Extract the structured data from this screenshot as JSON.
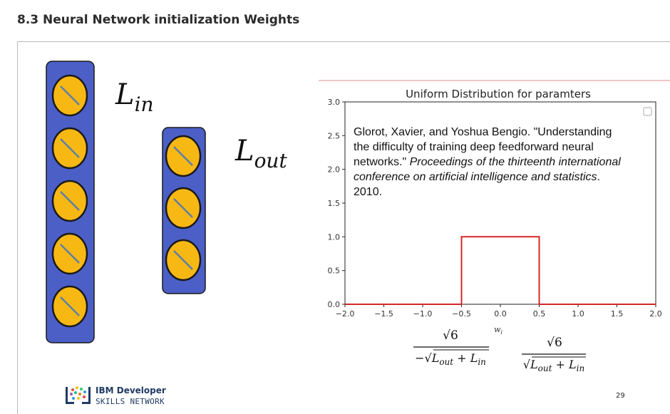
{
  "page": {
    "title": "8.3 Neural Network initialization Weights"
  },
  "slide": {
    "layer_in_label": {
      "base": "L",
      "sub": "in"
    },
    "layer_out_label": {
      "base": "L",
      "sub": "out"
    },
    "layer_in_neurons": 5,
    "layer_out_neurons": 3,
    "colors": {
      "layer_fill": "#4b5fc7",
      "neuron_fill": "#f8b814",
      "neuron_stroke": "#1a1a1a",
      "neuron_slash": "#5b7fa8",
      "line": "#d62728"
    }
  },
  "chart_data": {
    "type": "line",
    "title": "Uniform Distribution for paramters",
    "xlabel": "w",
    "xlabel_sub": "i",
    "ylabel": "",
    "xlim": [
      -2.0,
      2.0
    ],
    "ylim": [
      0.0,
      3.0
    ],
    "x_ticks": [
      "−2.0",
      "−1.5",
      "−1.0",
      "−0.5",
      "0.0",
      "0.5",
      "1.0",
      "1.5",
      "2.0"
    ],
    "y_ticks": [
      "0.0",
      "0.5",
      "1.0",
      "1.5",
      "2.0",
      "2.5",
      "3.0"
    ],
    "series": [
      {
        "values": [
          [
            -2.0,
            0.0
          ],
          [
            -0.5,
            0.0
          ],
          [
            -0.5,
            1.0
          ],
          [
            0.5,
            1.0
          ],
          [
            0.5,
            0.0
          ],
          [
            2.0,
            0.0
          ]
        ]
      }
    ],
    "citation": {
      "line1": "Glorot, Xavier, and Yoshua Bengio. \"Understanding",
      "line2": "the difficulty of training deep feedforward neural",
      "line3_plain": "networks.\" ",
      "line3_italic": "Proceedings of the thirteenth international",
      "line4_italic": "conference on artificial intelligence and statistics",
      "line4_plain": ".",
      "line5": "2010."
    },
    "bound_left": {
      "numerator": "√6",
      "denominator_prefix": "−√",
      "denominator_body": "L",
      "sub1": "out",
      "plus": " + L",
      "sub2": "in"
    },
    "bound_right": {
      "numerator": "√6",
      "denominator_prefix": "√",
      "denominator_body": "L",
      "sub1": "out",
      "plus": " + L",
      "sub2": "in"
    }
  },
  "footer": {
    "brand_line1": "IBM Developer",
    "brand_line2": "SKILLS NETWORK",
    "page_number": "29"
  }
}
